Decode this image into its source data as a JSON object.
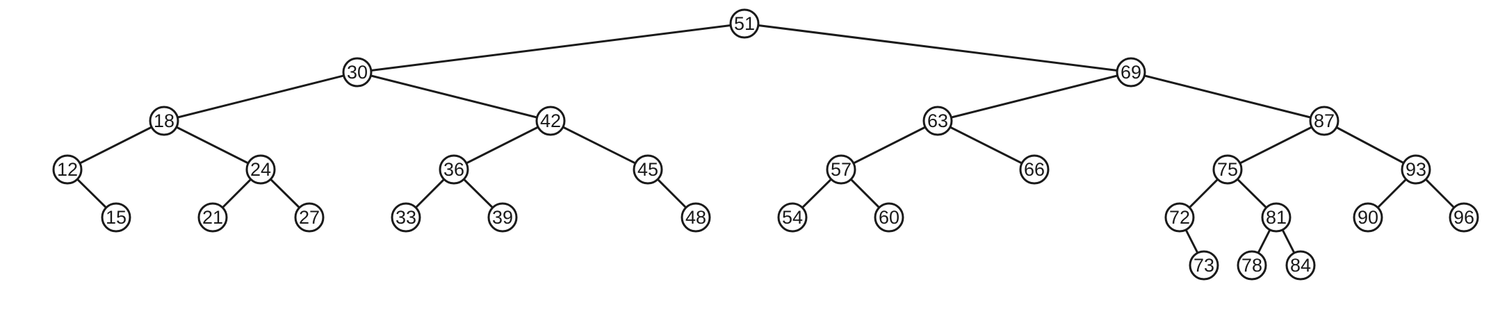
{
  "tree": {
    "nodes": [
      {
        "id": "51",
        "label": "51"
      },
      {
        "id": "30",
        "label": "30"
      },
      {
        "id": "69",
        "label": "69"
      },
      {
        "id": "18",
        "label": "18"
      },
      {
        "id": "42",
        "label": "42"
      },
      {
        "id": "63",
        "label": "63"
      },
      {
        "id": "87",
        "label": "87"
      },
      {
        "id": "12",
        "label": "12"
      },
      {
        "id": "24",
        "label": "24"
      },
      {
        "id": "36",
        "label": "36"
      },
      {
        "id": "45",
        "label": "45"
      },
      {
        "id": "57",
        "label": "57"
      },
      {
        "id": "66",
        "label": "66"
      },
      {
        "id": "75",
        "label": "75"
      },
      {
        "id": "93",
        "label": "93"
      },
      {
        "id": "15",
        "label": "15"
      },
      {
        "id": "21",
        "label": "21"
      },
      {
        "id": "27",
        "label": "27"
      },
      {
        "id": "33",
        "label": "33"
      },
      {
        "id": "39",
        "label": "39"
      },
      {
        "id": "48",
        "label": "48"
      },
      {
        "id": "54",
        "label": "54"
      },
      {
        "id": "60",
        "label": "60"
      },
      {
        "id": "72",
        "label": "72"
      },
      {
        "id": "81",
        "label": "81"
      },
      {
        "id": "90",
        "label": "90"
      },
      {
        "id": "96",
        "label": "96"
      },
      {
        "id": "73",
        "label": "73"
      },
      {
        "id": "78",
        "label": "78"
      },
      {
        "id": "84",
        "label": "84"
      }
    ],
    "edges": [
      [
        "51",
        "30"
      ],
      [
        "51",
        "69"
      ],
      [
        "30",
        "18"
      ],
      [
        "30",
        "42"
      ],
      [
        "69",
        "63"
      ],
      [
        "69",
        "87"
      ],
      [
        "18",
        "12"
      ],
      [
        "18",
        "24"
      ],
      [
        "42",
        "36"
      ],
      [
        "42",
        "45"
      ],
      [
        "63",
        "57"
      ],
      [
        "63",
        "66"
      ],
      [
        "87",
        "75"
      ],
      [
        "87",
        "93"
      ],
      [
        "12",
        "15"
      ],
      [
        "24",
        "21"
      ],
      [
        "24",
        "27"
      ],
      [
        "36",
        "33"
      ],
      [
        "36",
        "39"
      ],
      [
        "45",
        "48"
      ],
      [
        "57",
        "54"
      ],
      [
        "57",
        "60"
      ],
      [
        "75",
        "72"
      ],
      [
        "75",
        "81"
      ],
      [
        "93",
        "90"
      ],
      [
        "93",
        "96"
      ],
      [
        "72",
        "73"
      ],
      [
        "81",
        "78"
      ],
      [
        "81",
        "84"
      ]
    ]
  }
}
